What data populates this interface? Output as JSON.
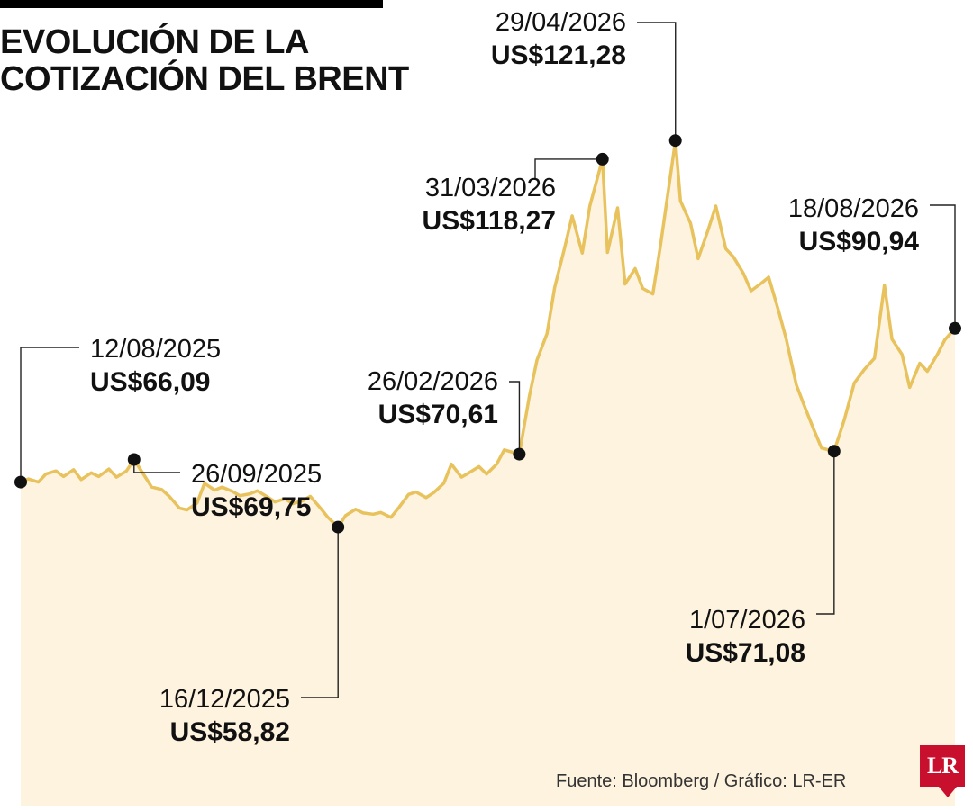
{
  "title_lines": [
    "EVOLUCIÓN DE LA",
    "COTIZACIÓN DEL BRENT"
  ],
  "source": "Fuente: Bloomberg / Gráfico: LR-ER",
  "logo": "LR",
  "colors": {
    "line": "#e8c25c",
    "fill": "#fdf3df",
    "marker": "#111111",
    "text": "#111111",
    "brand": "#c8102e"
  },
  "chart_data": {
    "type": "area",
    "title": "EVOLUCIÓN DE LA COTIZACIÓN DEL BRENT",
    "xlabel": "",
    "ylabel": "",
    "grid": false,
    "legend": "none",
    "ylim": [
      40,
      128
    ],
    "xlim": [
      "2025-08-12",
      "2026-08-18"
    ],
    "series": [
      {
        "values": [
          [
            "2025-08-12",
            66.09
          ],
          [
            "2025-08-15",
            66.6
          ],
          [
            "2025-08-19",
            66.1
          ],
          [
            "2025-08-22",
            67.4
          ],
          [
            "2025-08-26",
            67.9
          ],
          [
            "2025-08-29",
            67.0
          ],
          [
            "2025-09-02",
            68.1
          ],
          [
            "2025-09-05",
            66.5
          ],
          [
            "2025-09-09",
            67.6
          ],
          [
            "2025-09-12",
            67.0
          ],
          [
            "2025-09-16",
            68.2
          ],
          [
            "2025-09-19",
            66.9
          ],
          [
            "2025-09-23",
            67.9
          ],
          [
            "2025-09-26",
            69.75
          ],
          [
            "2025-09-30",
            67.2
          ],
          [
            "2025-10-03",
            65.3
          ],
          [
            "2025-10-07",
            64.9
          ],
          [
            "2025-10-10",
            63.8
          ],
          [
            "2025-10-14",
            61.9
          ],
          [
            "2025-10-17",
            61.6
          ],
          [
            "2025-10-21",
            62.7
          ],
          [
            "2025-10-24",
            65.9
          ],
          [
            "2025-10-28",
            64.8
          ],
          [
            "2025-10-31",
            65.3
          ],
          [
            "2025-11-04",
            64.6
          ],
          [
            "2025-11-07",
            63.9
          ],
          [
            "2025-11-11",
            64.2
          ],
          [
            "2025-11-14",
            64.7
          ],
          [
            "2025-11-18",
            63.7
          ],
          [
            "2025-11-21",
            62.9
          ],
          [
            "2025-11-25",
            63.4
          ],
          [
            "2025-11-28",
            62.6
          ],
          [
            "2025-12-02",
            63.1
          ],
          [
            "2025-12-05",
            63.8
          ],
          [
            "2025-12-09",
            61.9
          ],
          [
            "2025-12-12",
            60.4
          ],
          [
            "2025-12-16",
            58.82
          ],
          [
            "2025-12-19",
            60.7
          ],
          [
            "2025-12-23",
            61.7
          ],
          [
            "2025-12-26",
            61.1
          ],
          [
            "2025-12-30",
            60.9
          ],
          [
            "2026-01-02",
            61.2
          ],
          [
            "2026-01-06",
            60.4
          ],
          [
            "2026-01-09",
            61.9
          ],
          [
            "2026-01-13",
            64.1
          ],
          [
            "2026-01-16",
            64.5
          ],
          [
            "2026-01-20",
            63.6
          ],
          [
            "2026-01-23",
            64.4
          ],
          [
            "2026-01-27",
            65.9
          ],
          [
            "2026-01-30",
            69.0
          ],
          [
            "2026-02-03",
            66.9
          ],
          [
            "2026-02-06",
            67.6
          ],
          [
            "2026-02-10",
            68.6
          ],
          [
            "2026-02-13",
            67.4
          ],
          [
            "2026-02-17",
            69.0
          ],
          [
            "2026-02-20",
            71.3
          ],
          [
            "2026-02-26",
            70.61
          ],
          [
            "2026-03-02",
            80.0
          ],
          [
            "2026-03-05",
            85.8
          ],
          [
            "2026-03-09",
            90.1
          ],
          [
            "2026-03-12",
            97.5
          ],
          [
            "2026-03-16",
            104.0
          ],
          [
            "2026-03-19",
            109.1
          ],
          [
            "2026-03-23",
            103.1
          ],
          [
            "2026-03-26",
            110.7
          ],
          [
            "2026-03-31",
            118.27
          ],
          [
            "2026-04-02",
            103.2
          ],
          [
            "2026-04-06",
            110.4
          ],
          [
            "2026-04-09",
            98.1
          ],
          [
            "2026-04-13",
            100.6
          ],
          [
            "2026-04-16",
            97.4
          ],
          [
            "2026-04-20",
            96.5
          ],
          [
            "2026-04-23",
            104.2
          ],
          [
            "2026-04-29",
            121.28
          ],
          [
            "2026-05-01",
            111.5
          ],
          [
            "2026-05-05",
            107.9
          ],
          [
            "2026-05-08",
            102.2
          ],
          [
            "2026-05-12",
            106.9
          ],
          [
            "2026-05-15",
            110.7
          ],
          [
            "2026-05-19",
            103.8
          ],
          [
            "2026-05-22",
            102.5
          ],
          [
            "2026-05-26",
            99.8
          ],
          [
            "2026-05-29",
            97.0
          ],
          [
            "2026-06-02",
            98.2
          ],
          [
            "2026-06-05",
            99.2
          ],
          [
            "2026-06-09",
            93.7
          ],
          [
            "2026-06-12",
            89.2
          ],
          [
            "2026-06-16",
            81.8
          ],
          [
            "2026-06-19",
            78.6
          ],
          [
            "2026-06-23",
            74.5
          ],
          [
            "2026-06-26",
            71.6
          ],
          [
            "2026-07-01",
            71.08
          ],
          [
            "2026-07-05",
            76.1
          ],
          [
            "2026-07-09",
            82.1
          ],
          [
            "2026-07-13",
            84.3
          ],
          [
            "2026-07-17",
            86.1
          ],
          [
            "2026-07-21",
            97.9
          ],
          [
            "2026-07-24",
            89.2
          ],
          [
            "2026-07-28",
            86.7
          ],
          [
            "2026-07-31",
            81.4
          ],
          [
            "2026-08-04",
            85.3
          ],
          [
            "2026-08-07",
            84.0
          ],
          [
            "2026-08-11",
            86.7
          ],
          [
            "2026-08-14",
            89.1
          ],
          [
            "2026-08-18",
            90.94
          ]
        ]
      }
    ],
    "annotations": [
      {
        "date_label": "12/08/2025",
        "value_label": "US$66,09",
        "x": "2025-08-12",
        "y": 66.09
      },
      {
        "date_label": "26/09/2025",
        "value_label": "US$69,75",
        "x": "2025-09-26",
        "y": 69.75
      },
      {
        "date_label": "16/12/2025",
        "value_label": "US$58,82",
        "x": "2025-12-16",
        "y": 58.82
      },
      {
        "date_label": "26/02/2026",
        "value_label": "US$70,61",
        "x": "2026-02-26",
        "y": 70.61
      },
      {
        "date_label": "31/03/2026",
        "value_label": "US$118,27",
        "x": "2026-03-31",
        "y": 118.27
      },
      {
        "date_label": "29/04/2026",
        "value_label": "US$121,28",
        "x": "2026-04-29",
        "y": 121.28
      },
      {
        "date_label": "1/07/2026",
        "value_label": "US$71,08",
        "x": "2026-07-01",
        "y": 71.08
      },
      {
        "date_label": "18/08/2026",
        "value_label": "US$90,94",
        "x": "2026-08-18",
        "y": 90.94
      }
    ]
  }
}
